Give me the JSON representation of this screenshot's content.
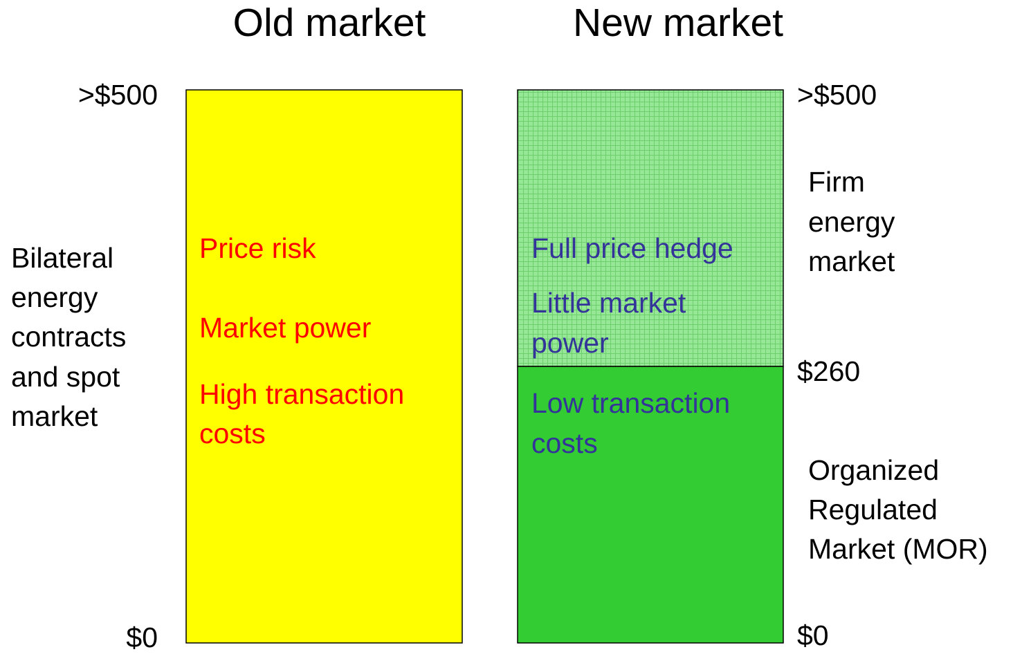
{
  "titles": {
    "old": "Old market",
    "new": "New market"
  },
  "old_market": {
    "top_price": ">$500",
    "bottom_price": "$0",
    "label": [
      "Bilateral",
      "energy",
      "contracts",
      "and spot",
      "market"
    ],
    "issues": [
      "Price risk",
      "Market power",
      "High transaction",
      "costs"
    ]
  },
  "new_market": {
    "top_price": ">$500",
    "mid_price": "$260",
    "bottom_price": "$0",
    "upper_label": [
      "Firm",
      "energy",
      "market"
    ],
    "lower_label": [
      "Organized",
      "Regulated",
      "Market (MOR)"
    ],
    "upper_features": [
      "Full price hedge",
      "Little market",
      "power"
    ],
    "lower_features": [
      "Low transaction",
      "costs"
    ]
  }
}
